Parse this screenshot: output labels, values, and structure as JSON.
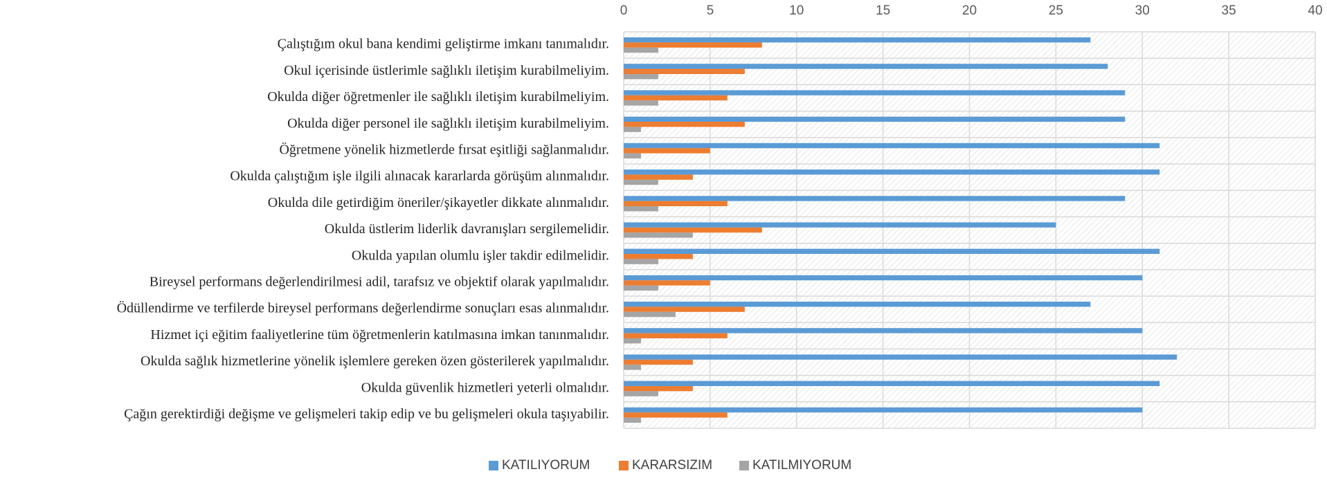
{
  "chart_data": {
    "type": "barh",
    "categories": [
      "Çalıştığım okul bana kendimi geliştirme imkanı tanımalıdır.",
      "Okul içerisinde üstlerimle sağlıklı iletişim kurabilmeliyim.",
      "Okulda diğer öğretmenler ile sağlıklı iletişim kurabilmeliyim.",
      "Okulda diğer personel ile sağlıklı iletişim kurabilmeliyim.",
      "Öğretmene yönelik hizmetlerde fırsat eşitliği sağlanmalıdır.",
      "Okulda çalıştığım işle ilgili alınacak kararlarda görüşüm alınmalıdır.",
      "Okulda dile getirdiğim öneriler/şikayetler dikkate alınmalıdır.",
      "Okulda üstlerim liderlik davranışları sergilemelidir.",
      "Okulda yapılan olumlu işler takdir edilmelidir.",
      "Bireysel performans değerlendirilmesi adil, tarafsız ve objektif olarak yapılmalıdır.",
      "Ödüllendirme ve terfilerde bireysel performans değerlendirme sonuçları esas alınmalıdır.",
      "Hizmet içi eğitim faaliyetlerine tüm öğretmenlerin katılmasına imkan tanınmalıdır.",
      "Okulda sağlık hizmetlerine yönelik işlemlere gereken özen gösterilerek yapılmalıdır.",
      "Okulda güvenlik hizmetleri yeterli olmalıdır.",
      "Çağın gerektirdiği değişme ve gelişmeleri takip edip ve bu gelişmeleri okula taşıyabilir."
    ],
    "series": [
      {
        "name": "KATILIYORUM",
        "color": "#5b9bd5",
        "values": [
          27,
          28,
          29,
          29,
          31,
          31,
          29,
          25,
          31,
          30,
          27,
          30,
          32,
          31,
          30
        ]
      },
      {
        "name": "KARARSIZIM",
        "color": "#ed7d31",
        "values": [
          8,
          7,
          6,
          7,
          5,
          4,
          6,
          8,
          4,
          5,
          7,
          6,
          4,
          4,
          6
        ]
      },
      {
        "name": "KATILMIYORUM",
        "color": "#a5a5a5",
        "values": [
          2,
          2,
          2,
          1,
          1,
          2,
          2,
          4,
          2,
          2,
          3,
          1,
          1,
          2,
          1
        ]
      }
    ],
    "xlim": [
      0,
      40
    ],
    "xticks": [
      0,
      5,
      10,
      15,
      20,
      25,
      30,
      35,
      40
    ],
    "grid": true,
    "legend": "bottom"
  }
}
